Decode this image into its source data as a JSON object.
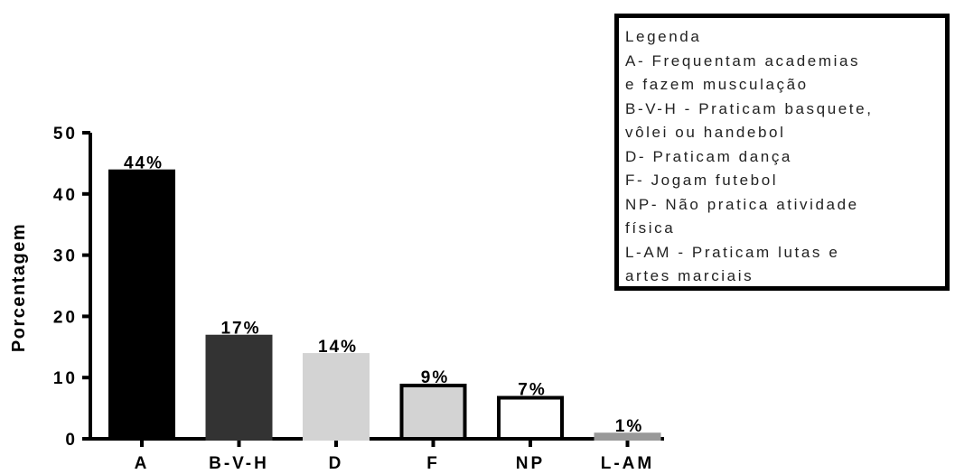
{
  "chart_data": {
    "type": "bar",
    "categories": [
      "A",
      "B-V-H",
      "D",
      "F",
      "NP",
      "L-AM"
    ],
    "values": [
      44,
      17,
      14,
      9,
      7,
      1
    ],
    "data_labels": [
      "44%",
      "17%",
      "14%",
      "9%",
      "7%",
      "1%"
    ],
    "ylabel": "Porcentagem",
    "ylim": [
      0,
      50
    ],
    "yticks": [
      0,
      10,
      20,
      30,
      40,
      50
    ],
    "grid": false,
    "legend_placement": "top-right",
    "bar_styles": [
      {
        "fill": "#000000",
        "stroke": "#000000"
      },
      {
        "fill": "#333333",
        "stroke": "#333333"
      },
      {
        "fill": "#d3d3d3",
        "stroke": "#d3d3d3"
      },
      {
        "fill": "#d3d3d3",
        "stroke": "#000000"
      },
      {
        "fill": "#ffffff",
        "stroke": "#000000"
      },
      {
        "fill": "#999999",
        "stroke": "#999999"
      }
    ]
  },
  "legend": {
    "lines": [
      "Legenda",
      "A- Frequentam academias",
      "e fazem musculação",
      "B-V-H - Praticam basquete,",
      "vôlei ou handebol",
      "D- Praticam dança",
      "F- Jogam futebol",
      "NP- Não pratica atividade",
      "física",
      "L-AM - Praticam lutas e",
      "artes marciais"
    ]
  }
}
